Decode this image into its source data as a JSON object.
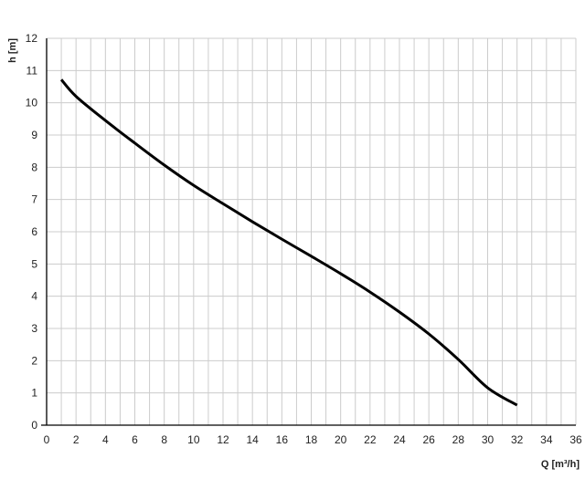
{
  "chart_data": {
    "type": "line",
    "title": "",
    "xlabel": "Q [m³/h]",
    "ylabel": "h [m]",
    "xlim": [
      0,
      36
    ],
    "ylim": [
      0,
      12
    ],
    "xticks": [
      0,
      2,
      4,
      6,
      8,
      10,
      12,
      14,
      16,
      18,
      20,
      22,
      24,
      26,
      28,
      30,
      32,
      34,
      36
    ],
    "yticks": [
      0,
      1,
      2,
      3,
      4,
      5,
      6,
      7,
      8,
      9,
      10,
      11,
      12
    ],
    "grid": true,
    "x_minor_grid_step": 1,
    "line_color": "#000000",
    "grid_color": "#cccccc",
    "series": [
      {
        "x": [
          1,
          2,
          4,
          6,
          8,
          10,
          12,
          14,
          16,
          18,
          20,
          22,
          24,
          26,
          28,
          30,
          32
        ],
        "y": [
          10.72,
          10.2,
          9.45,
          8.75,
          8.07,
          7.44,
          6.87,
          6.31,
          5.77,
          5.24,
          4.7,
          4.13,
          3.51,
          2.83,
          2.04,
          1.16,
          0.62
        ]
      }
    ]
  }
}
